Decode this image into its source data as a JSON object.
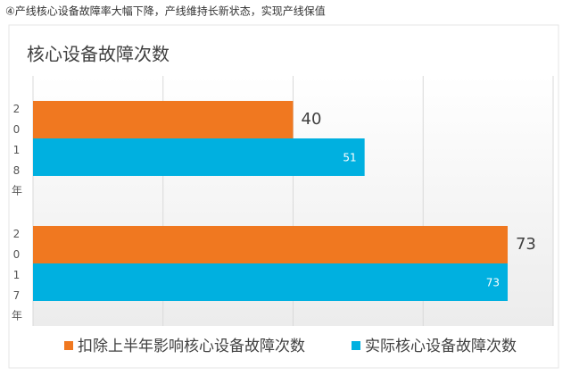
{
  "caption": "④产线核心设备故障率大幅下降，产线维持长新状态，实现产线保值",
  "chart_data": {
    "type": "bar",
    "orientation": "horizontal",
    "title": "核心设备故障次数",
    "categories": [
      "2018年",
      "2017年"
    ],
    "series": [
      {
        "name": "扣除上半年影响核心设备故障次数",
        "color": "#f07820",
        "values": [
          40,
          73
        ]
      },
      {
        "name": "实际核心设备故障次数",
        "color": "#00b0e0",
        "values": [
          51,
          73
        ]
      }
    ],
    "xlim": [
      0,
      80
    ],
    "xticks": [
      0,
      20,
      40,
      60,
      80
    ],
    "grid": true,
    "legend": "bottom"
  }
}
